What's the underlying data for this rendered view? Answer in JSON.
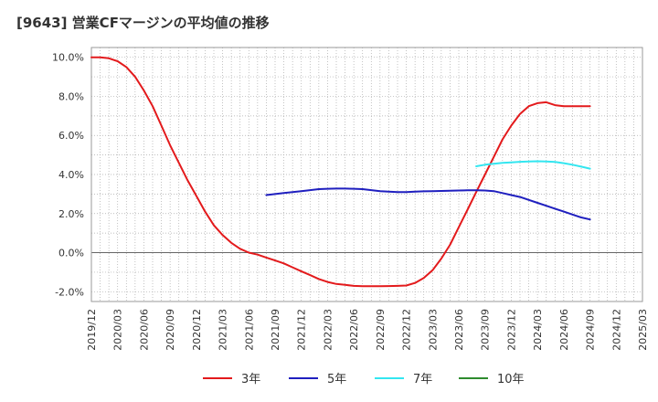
{
  "chart_data": {
    "type": "line",
    "title": "[9643]  営業CFマージンの平均値の推移",
    "xlabel": "",
    "ylabel": "",
    "ylim": [
      -2.5,
      10.5
    ],
    "y_ticks": [
      "10.0%",
      "8.0%",
      "6.0%",
      "4.0%",
      "2.0%",
      "0.0%",
      "-2.0%"
    ],
    "y_tick_values": [
      10,
      8,
      6,
      4,
      2,
      0,
      -2
    ],
    "x_ticks": [
      "2019/12",
      "2020/03",
      "2020/06",
      "2020/09",
      "2020/12",
      "2021/03",
      "2021/06",
      "2021/09",
      "2021/12",
      "2022/03",
      "2022/06",
      "2022/09",
      "2022/12",
      "2023/03",
      "2023/06",
      "2023/09",
      "2023/12",
      "2024/03",
      "2024/06",
      "2024/09",
      "2024/12",
      "2025/03"
    ],
    "grid": true,
    "legend_position": "bottom",
    "series": [
      {
        "name": "3年",
        "color": "#e31a1c",
        "x": [
          "2019/12",
          "2020/01",
          "2020/02",
          "2020/03",
          "2020/04",
          "2020/05",
          "2020/06",
          "2020/07",
          "2020/08",
          "2020/09",
          "2020/10",
          "2020/11",
          "2020/12",
          "2021/01",
          "2021/02",
          "2021/03",
          "2021/04",
          "2021/05",
          "2021/06",
          "2021/07",
          "2021/08",
          "2021/09",
          "2021/10",
          "2021/11",
          "2021/12",
          "2022/01",
          "2022/02",
          "2022/03",
          "2022/04",
          "2022/05",
          "2022/06",
          "2022/07",
          "2022/08",
          "2022/09",
          "2022/10",
          "2022/11",
          "2022/12",
          "2023/01",
          "2023/02",
          "2023/03",
          "2023/04",
          "2023/05",
          "2023/06",
          "2023/07",
          "2023/08",
          "2023/09",
          "2023/10",
          "2023/11",
          "2023/12",
          "2024/01",
          "2024/02",
          "2024/03",
          "2024/04",
          "2024/05",
          "2024/06",
          "2024/07",
          "2024/08",
          "2024/09"
        ],
        "values": [
          10.0,
          10.0,
          9.95,
          9.8,
          9.5,
          9.0,
          8.3,
          7.5,
          6.5,
          5.5,
          4.6,
          3.7,
          2.9,
          2.1,
          1.4,
          0.9,
          0.5,
          0.2,
          0.0,
          -0.1,
          -0.25,
          -0.4,
          -0.55,
          -0.75,
          -0.95,
          -1.15,
          -1.35,
          -1.5,
          -1.6,
          -1.65,
          -1.7,
          -1.72,
          -1.72,
          -1.72,
          -1.71,
          -1.7,
          -1.68,
          -1.55,
          -1.3,
          -0.9,
          -0.3,
          0.4,
          1.3,
          2.2,
          3.1,
          4.0,
          4.9,
          5.8,
          6.5,
          7.1,
          7.5,
          7.65,
          7.7,
          7.55,
          7.5,
          7.5,
          7.5,
          7.5
        ],
        "note_last_index": 57
      },
      {
        "name": "5年",
        "color": "#1f1fbf",
        "x": [
          "2021/08",
          "2021/09",
          "2021/10",
          "2021/11",
          "2021/12",
          "2022/01",
          "2022/02",
          "2022/03",
          "2022/04",
          "2022/05",
          "2022/06",
          "2022/07",
          "2022/08",
          "2022/09",
          "2022/10",
          "2022/11",
          "2022/12",
          "2023/01",
          "2023/02",
          "2023/03",
          "2023/04",
          "2023/05",
          "2023/06",
          "2023/07",
          "2023/08",
          "2023/09",
          "2023/10",
          "2023/11",
          "2023/12",
          "2024/01",
          "2024/02",
          "2024/03",
          "2024/04",
          "2024/05",
          "2024/06",
          "2024/07",
          "2024/08",
          "2024/09"
        ],
        "values": [
          2.95,
          3.0,
          3.05,
          3.1,
          3.15,
          3.2,
          3.25,
          3.27,
          3.28,
          3.28,
          3.27,
          3.25,
          3.2,
          3.15,
          3.12,
          3.1,
          3.1,
          3.12,
          3.14,
          3.15,
          3.16,
          3.17,
          3.18,
          3.19,
          3.19,
          3.18,
          3.15,
          3.05,
          2.95,
          2.85,
          2.7,
          2.55,
          2.4,
          2.25,
          2.1,
          1.95,
          1.8,
          1.7
        ]
      },
      {
        "name": "7年",
        "color": "#33e6f0",
        "x": [
          "2023/08",
          "2023/09",
          "2023/10",
          "2023/11",
          "2023/12",
          "2024/01",
          "2024/02",
          "2024/03",
          "2024/04",
          "2024/05",
          "2024/06",
          "2024/07",
          "2024/08",
          "2024/09"
        ],
        "values": [
          4.42,
          4.5,
          4.55,
          4.6,
          4.62,
          4.65,
          4.67,
          4.68,
          4.67,
          4.64,
          4.58,
          4.5,
          4.4,
          4.3
        ]
      },
      {
        "name": "10年",
        "color": "#2e8b2e",
        "x": [],
        "values": []
      }
    ]
  }
}
